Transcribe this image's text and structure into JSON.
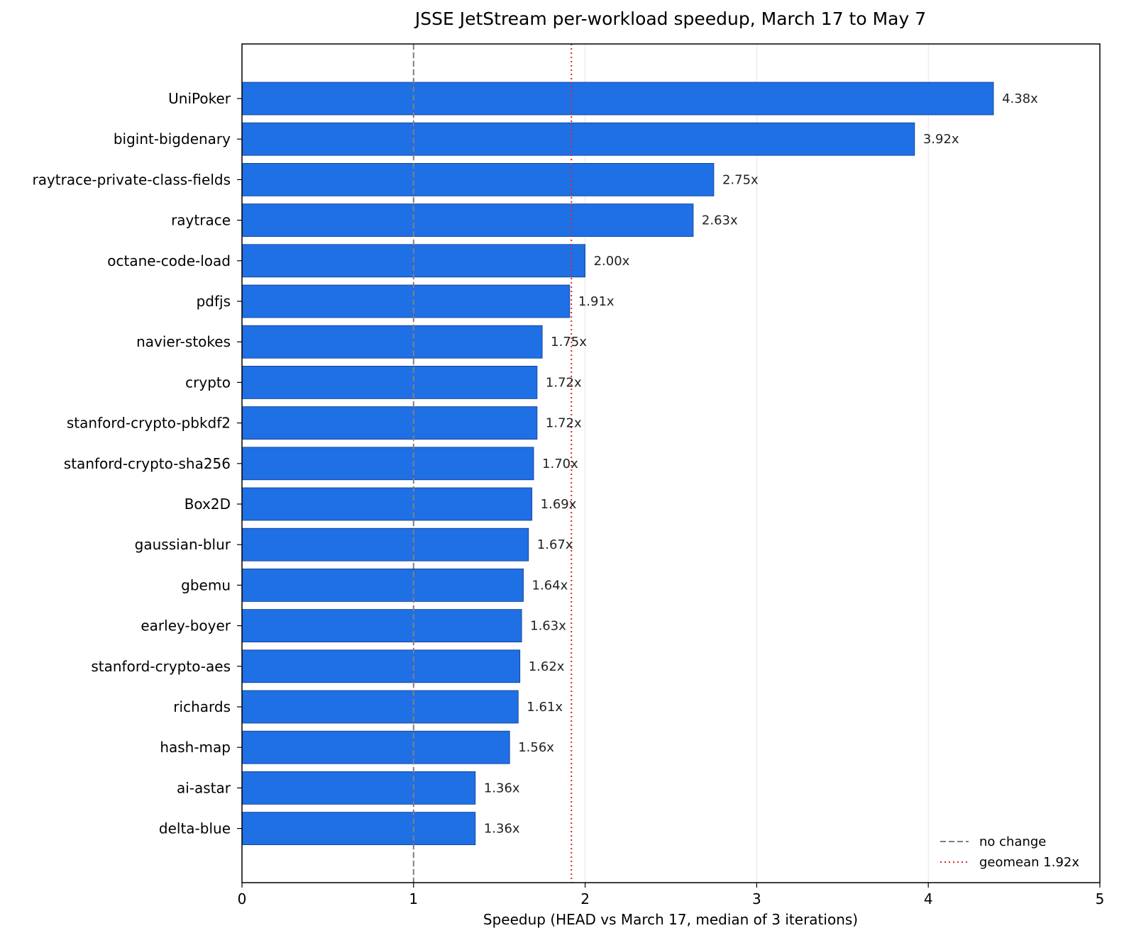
{
  "chart_data": {
    "type": "bar",
    "orientation": "horizontal",
    "title": "JSSE JetStream per-workload speedup, March 17 to May 7",
    "xlabel": "Speedup (HEAD vs March 17, median of 3 iterations)",
    "ylabel": "",
    "xlim": [
      0,
      5
    ],
    "xticks": [
      0,
      1,
      2,
      3,
      4,
      5
    ],
    "grid": "vertical",
    "categories": [
      "UniPoker",
      "bigint-bigdenary",
      "raytrace-private-class-fields",
      "raytrace",
      "octane-code-load",
      "pdfjs",
      "navier-stokes",
      "crypto",
      "stanford-crypto-pbkdf2",
      "stanford-crypto-sha256",
      "Box2D",
      "gaussian-blur",
      "gbemu",
      "earley-boyer",
      "stanford-crypto-aes",
      "richards",
      "hash-map",
      "ai-astar",
      "delta-blue"
    ],
    "values": [
      4.38,
      3.92,
      2.75,
      2.63,
      2.0,
      1.91,
      1.75,
      1.72,
      1.72,
      1.7,
      1.69,
      1.67,
      1.64,
      1.63,
      1.62,
      1.61,
      1.56,
      1.36,
      1.36
    ],
    "value_labels": [
      "4.38x",
      "3.92x",
      "2.75x",
      "2.63x",
      "2.00x",
      "1.91x",
      "1.75x",
      "1.72x",
      "1.72x",
      "1.70x",
      "1.69x",
      "1.67x",
      "1.64x",
      "1.63x",
      "1.62x",
      "1.61x",
      "1.56x",
      "1.36x",
      "1.36x"
    ],
    "reference_lines": [
      {
        "name": "no change",
        "value": 1,
        "style": "dashed",
        "color": "#808080"
      },
      {
        "name": "geomean 1.92x",
        "value": 1.92,
        "style": "dotted",
        "color": "#d62728"
      }
    ],
    "legend": {
      "placement": "bottom-right",
      "entries": [
        "no change",
        "geomean 1.92x"
      ]
    },
    "colors": {
      "bar_fill": "#1f6fe5",
      "bar_edge": "#0d3a8c"
    }
  }
}
